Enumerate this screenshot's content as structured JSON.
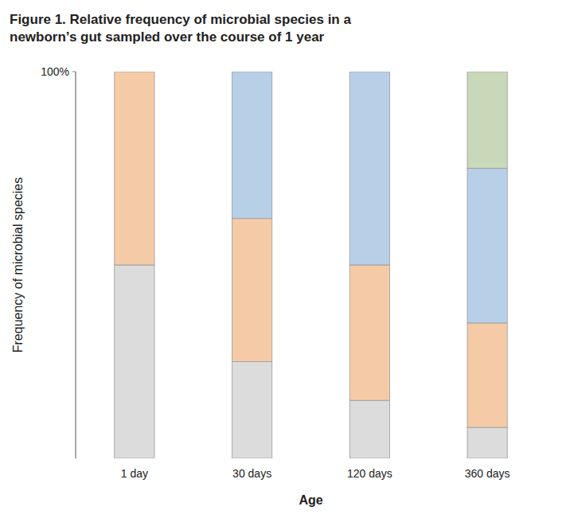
{
  "chart_data": {
    "type": "bar",
    "stacked": true,
    "grid": false,
    "title": "Figure 1. Relative frequency of microbial species in a\nnewborn’s gut sampled over the course of 1 year",
    "xlabel": "Age",
    "ylabel": "Frequency of microbial species",
    "categories": [
      "1 day",
      "30 days",
      "120 days",
      "360 days"
    ],
    "series": [
      {
        "color": "#dcdcdc",
        "values": [
          50,
          25,
          15,
          8
        ]
      },
      {
        "color": "#f5cba7",
        "values": [
          50,
          37,
          35,
          27
        ]
      },
      {
        "color": "#b8cfe8",
        "values": [
          0,
          38,
          50,
          40
        ]
      },
      {
        "color": "#c8d8b8",
        "values": [
          0,
          0,
          0,
          25
        ]
      }
    ],
    "ylim": [
      0,
      100
    ],
    "yticks": [
      {
        "value": 100,
        "label": "100%"
      }
    ]
  }
}
